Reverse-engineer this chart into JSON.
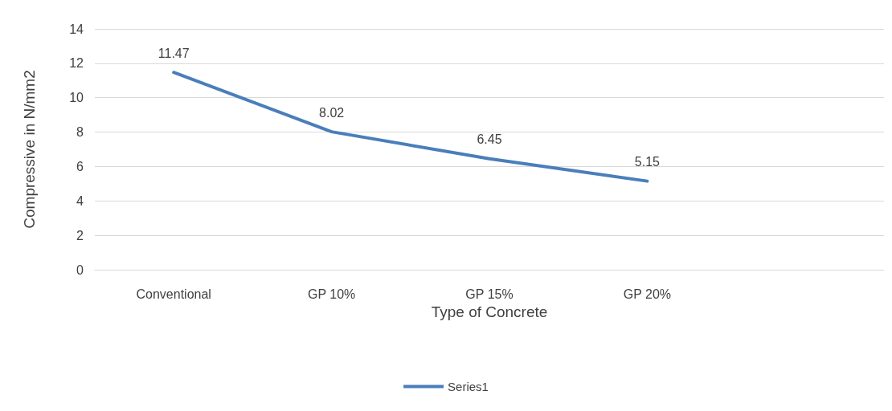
{
  "chart_data": {
    "type": "line",
    "xlabel": "Type of Concrete",
    "ylabel": "Compressive in N/mm2",
    "categories": [
      "Conventional",
      "GP 10%",
      "GP 15%",
      "GP 20%",
      null
    ],
    "series": [
      {
        "name": "Series1",
        "color": "#4a7ebb",
        "values": [
          11.47,
          8.02,
          6.45,
          5.15,
          null
        ]
      }
    ],
    "ylim": [
      0,
      14
    ],
    "yticks": [
      0,
      2,
      4,
      6,
      8,
      10,
      12,
      14
    ],
    "grid": "y",
    "legend": "bottom",
    "data_labels": true,
    "marker": "none",
    "line_style": "solid"
  }
}
